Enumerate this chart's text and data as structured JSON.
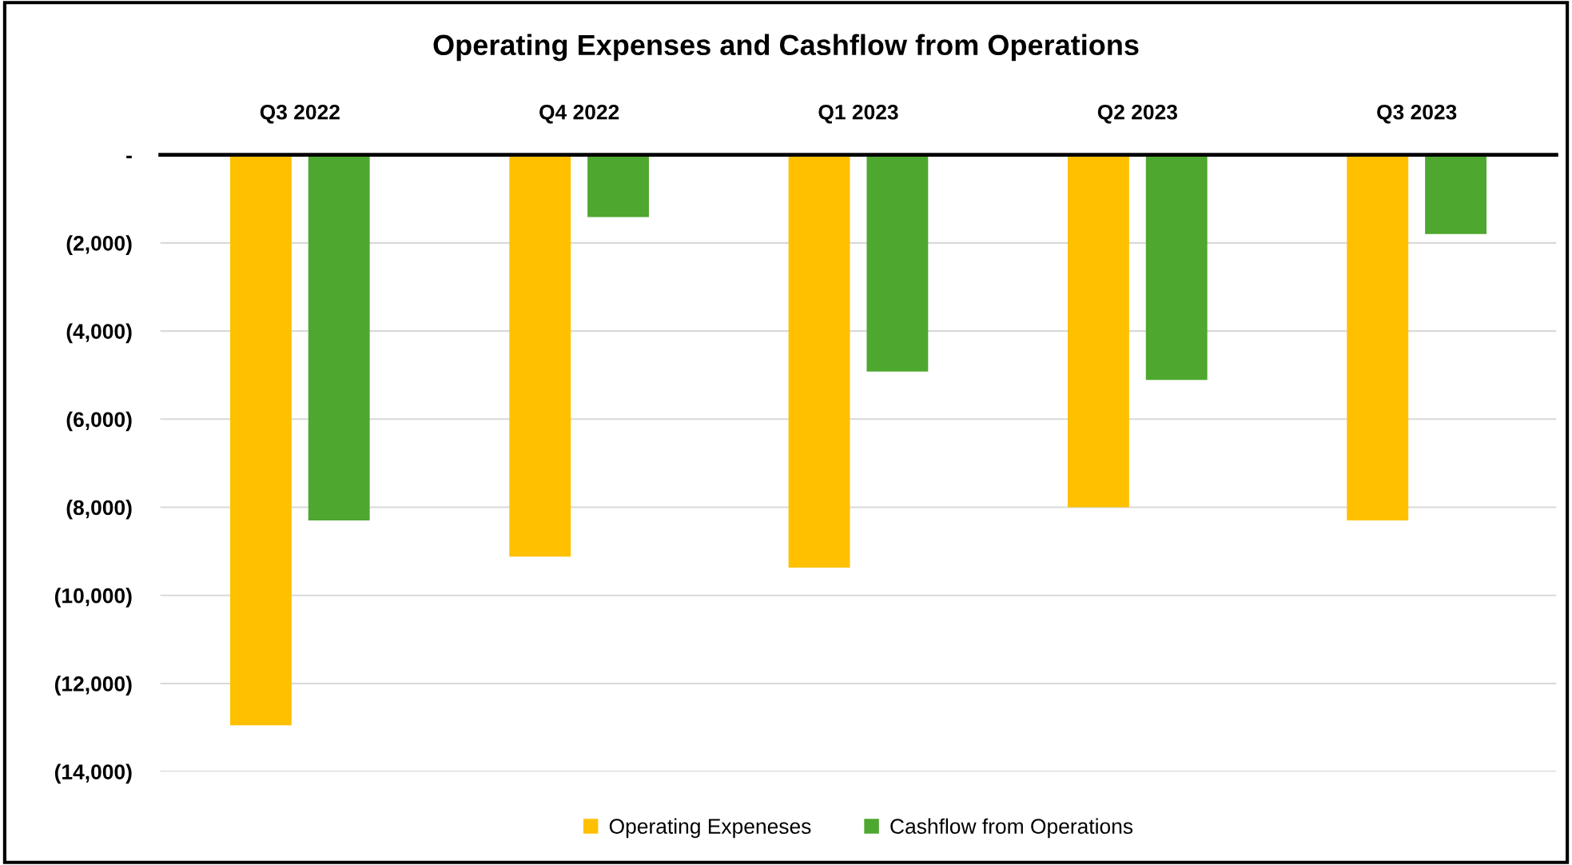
{
  "chart_data": {
    "type": "bar",
    "title": "Operating Expenses and Cashflow from Operations",
    "categories": [
      "Q3 2022",
      "Q4 2022",
      "Q1 2023",
      "Q2 2023",
      "Q3 2023"
    ],
    "series": [
      {
        "name": "Operating Expeneses",
        "color": "#ffc000",
        "values": [
          -12950,
          -9120,
          -9370,
          -8000,
          -8300
        ]
      },
      {
        "name": "Cashflow from Operations",
        "color": "#4ea72e",
        "values": [
          -8300,
          -1410,
          -4920,
          -5110,
          -1800
        ]
      }
    ],
    "ylim": [
      -14000,
      0
    ],
    "yticks": [
      {
        "value": 0,
        "label": "-"
      },
      {
        "value": -2000,
        "label": "(2,000)"
      },
      {
        "value": -4000,
        "label": "(4,000)"
      },
      {
        "value": -6000,
        "label": "(6,000)"
      },
      {
        "value": -8000,
        "label": "(8,000)"
      },
      {
        "value": -10000,
        "label": "(10,000)"
      },
      {
        "value": -12000,
        "label": "(12,000)"
      },
      {
        "value": -14000,
        "label": "(14,000)"
      }
    ],
    "grid": "y",
    "legend": "bottom"
  }
}
